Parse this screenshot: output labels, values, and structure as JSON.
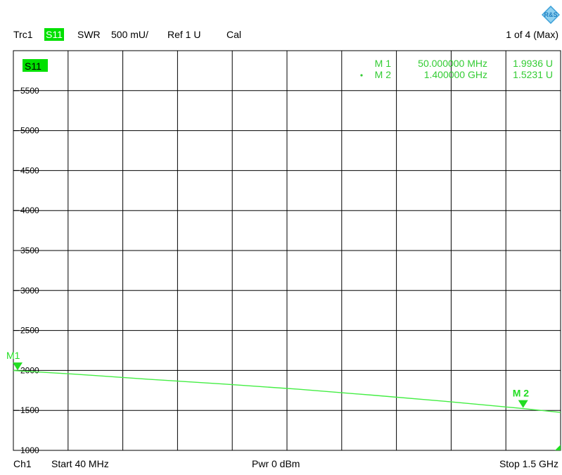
{
  "header": {
    "trace": "Trc1",
    "param": "S11",
    "format": "SWR",
    "scale": "500 mU/",
    "ref": "Ref 1 U",
    "cal": "Cal",
    "page": "1 of 4 (Max)"
  },
  "footer": {
    "channel": "Ch1",
    "start": "Start  40 MHz",
    "power": "Pwr  0 dBm",
    "stop": "Stop  1.5 GHz"
  },
  "trace_label": "S11",
  "colors": {
    "trace": "#44ee44",
    "marker": "#22dd22",
    "badge": "#00e000",
    "grid": "#000000",
    "marker_text": "#33cc33"
  },
  "icons": {
    "logo": "rohde-schwarz-logo-icon"
  },
  "chart_data": {
    "type": "line",
    "title": "",
    "xlabel": "",
    "ylabel": "",
    "x_unit": "GHz",
    "xlim": [
      0.04,
      1.5
    ],
    "ylim": [
      1000,
      6000
    ],
    "y_ticks": [
      1000,
      1500,
      2000,
      2500,
      3000,
      3500,
      4000,
      4500,
      5000,
      5500
    ],
    "y_tick_labels": [
      "1000",
      "1500",
      "2000",
      "2500",
      "3000",
      "3500",
      "4000",
      "4500",
      "5000",
      "5500"
    ],
    "grid": true,
    "series": [
      {
        "x": [
          0.04,
          0.2,
          0.4,
          0.6,
          0.8,
          1.0,
          1.2,
          1.4,
          1.5
        ],
        "y": [
          1999,
          1955,
          1890,
          1830,
          1765,
          1690,
          1610,
          1523,
          1475
        ]
      }
    ],
    "markers": [
      {
        "label": "M 1",
        "map_label": "M1",
        "freq": "50.000000 MHz",
        "value": "1.9936  U",
        "x": 0.05,
        "y": 1993.6,
        "active": false
      },
      {
        "label": "M 2",
        "map_label": "M 2",
        "freq": "1.400000 GHz",
        "value": "1.5231  U",
        "x": 1.4,
        "y": 1523.1,
        "active": true
      }
    ]
  }
}
